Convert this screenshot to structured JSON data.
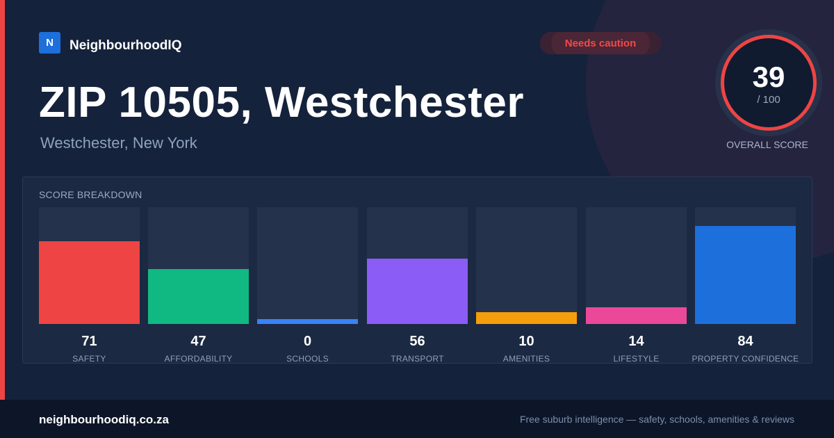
{
  "brand": {
    "logo_letter": "N",
    "name": "NeighbourhoodIQ"
  },
  "badge": {
    "label": "Needs caution",
    "color": "#f04a4a"
  },
  "header": {
    "title": "ZIP 10505, Westchester",
    "subtitle": "Westchester, New York"
  },
  "overall": {
    "value": "39",
    "max": "/ 100",
    "label": "OVERALL SCORE",
    "ring_color": "#ef4444"
  },
  "breakdown": {
    "title": "SCORE BREAKDOWN",
    "metrics": [
      {
        "value": "71",
        "label": "SAFETY",
        "color": "#ef4444",
        "fill_fraction": 0.71
      },
      {
        "value": "47",
        "label": "AFFORDABILITY",
        "color": "#10b981",
        "fill_fraction": 0.47
      },
      {
        "value": "0",
        "label": "SCHOOLS",
        "color": "#3b82f6",
        "fill_fraction": 0.0
      },
      {
        "value": "56",
        "label": "TRANSPORT",
        "color": "#8b5cf6",
        "fill_fraction": 0.56
      },
      {
        "value": "10",
        "label": "AMENITIES",
        "color": "#f59e0b",
        "fill_fraction": 0.1
      },
      {
        "value": "14",
        "label": "LIFESTYLE",
        "color": "#ec4899",
        "fill_fraction": 0.14
      },
      {
        "value": "84",
        "label": "PROPERTY CONFIDENCE",
        "color": "#1d6fdc",
        "fill_fraction": 0.84
      }
    ]
  },
  "footer": {
    "domain": "neighbourhoodiq.co.za",
    "tagline": "Free suburb intelligence — safety, schools, amenities & reviews"
  }
}
